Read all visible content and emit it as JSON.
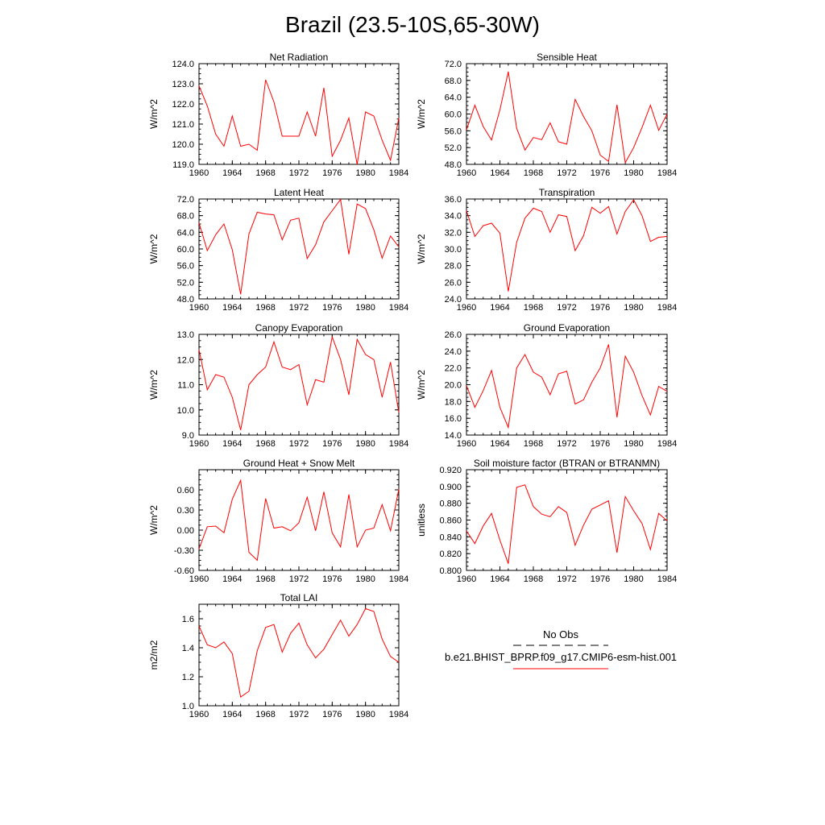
{
  "page": {
    "title": "Brazil (23.5-10S,65-30W)"
  },
  "legend": {
    "obs_label": "No Obs",
    "model_label": "b.e21.BHIST_BPRP.f09_g17.CMIP6-esm-hist.001",
    "model_color": "#ff0000",
    "obs_color": "#000000"
  },
  "chart_data": [
    {
      "type": "line",
      "title": "Net Radiation",
      "ylabel": "W/m^2",
      "xlim": [
        1960,
        1984
      ],
      "ylim": [
        119.0,
        124.0
      ],
      "xticks": [
        "1960",
        "1964",
        "1968",
        "1972",
        "1976",
        "1980",
        "1984"
      ],
      "yticks": [
        "119.0",
        "120.0",
        "121.0",
        "122.0",
        "123.0",
        "124.0"
      ],
      "x": [
        1960,
        1961,
        1962,
        1963,
        1964,
        1965,
        1966,
        1967,
        1968,
        1969,
        1970,
        1971,
        1972,
        1973,
        1974,
        1975,
        1976,
        1977,
        1978,
        1979,
        1980,
        1981,
        1982,
        1983,
        1984
      ],
      "series": [
        {
          "color": "#ff0000",
          "values": [
            122.9,
            121.9,
            120.5,
            119.9,
            121.4,
            119.9,
            120.0,
            119.7,
            123.2,
            122.1,
            120.4,
            120.4,
            120.4,
            121.6,
            120.4,
            122.8,
            119.4,
            120.2,
            121.3,
            119.0,
            121.6,
            121.4,
            120.2,
            119.2,
            121.3
          ]
        }
      ]
    },
    {
      "type": "line",
      "title": "Sensible Heat",
      "ylabel": "W/m^2",
      "xlim": [
        1960,
        1984
      ],
      "ylim": [
        48.0,
        72.0
      ],
      "xticks": [
        "1960",
        "1964",
        "1968",
        "1972",
        "1976",
        "1980",
        "1984"
      ],
      "yticks": [
        "48.0",
        "52.0",
        "56.0",
        "60.0",
        "64.0",
        "68.0",
        "72.0"
      ],
      "x": [
        1960,
        1961,
        1962,
        1963,
        1964,
        1965,
        1966,
        1967,
        1968,
        1969,
        1970,
        1971,
        1972,
        1973,
        1974,
        1975,
        1976,
        1977,
        1978,
        1979,
        1980,
        1981,
        1982,
        1983,
        1984
      ],
      "series": [
        {
          "color": "#ff0000",
          "values": [
            56.2,
            62.1,
            57.0,
            53.8,
            61.0,
            70.1,
            56.6,
            51.4,
            54.4,
            53.9,
            57.9,
            53.4,
            52.8,
            63.5,
            59.4,
            56.0,
            50.2,
            48.7,
            62.2,
            48.4,
            52.0,
            56.8,
            62.1,
            56.1,
            60.0
          ]
        }
      ]
    },
    {
      "type": "line",
      "title": "Latent Heat",
      "ylabel": "W/m^2",
      "xlim": [
        1960,
        1984
      ],
      "ylim": [
        48.0,
        72.0
      ],
      "xticks": [
        "1960",
        "1964",
        "1968",
        "1972",
        "1976",
        "1980",
        "1984"
      ],
      "yticks": [
        "48.0",
        "52.0",
        "56.0",
        "60.0",
        "64.0",
        "68.0",
        "72.0"
      ],
      "x": [
        1960,
        1961,
        1962,
        1963,
        1964,
        1965,
        1966,
        1967,
        1968,
        1969,
        1970,
        1971,
        1972,
        1973,
        1974,
        1975,
        1976,
        1977,
        1978,
        1979,
        1980,
        1981,
        1982,
        1983,
        1984
      ],
      "series": [
        {
          "color": "#ff0000",
          "values": [
            66.3,
            59.6,
            63.4,
            66.0,
            59.8,
            49.1,
            63.6,
            68.8,
            68.4,
            68.2,
            62.2,
            66.9,
            67.4,
            57.7,
            61.0,
            66.5,
            69.2,
            71.9,
            58.7,
            70.8,
            69.7,
            64.6,
            57.8,
            63.1,
            60.5
          ]
        }
      ]
    },
    {
      "type": "line",
      "title": "Transpiration",
      "ylabel": "W/m^2",
      "xlim": [
        1960,
        1984
      ],
      "ylim": [
        24.0,
        36.0
      ],
      "xticks": [
        "1960",
        "1964",
        "1968",
        "1972",
        "1976",
        "1980",
        "1984"
      ],
      "yticks": [
        "24.0",
        "26.0",
        "28.0",
        "30.0",
        "32.0",
        "34.0",
        "36.0"
      ],
      "x": [
        1960,
        1961,
        1962,
        1963,
        1964,
        1965,
        1966,
        1967,
        1968,
        1969,
        1970,
        1971,
        1972,
        1973,
        1974,
        1975,
        1976,
        1977,
        1978,
        1979,
        1980,
        1981,
        1982,
        1983,
        1984
      ],
      "series": [
        {
          "color": "#ff0000",
          "values": [
            34.6,
            31.5,
            32.8,
            33.1,
            31.9,
            24.9,
            30.8,
            33.7,
            34.9,
            34.5,
            32.0,
            34.1,
            33.9,
            29.8,
            31.6,
            35.0,
            34.3,
            35.1,
            31.8,
            34.5,
            35.9,
            34.0,
            30.9,
            31.4,
            31.5
          ]
        }
      ]
    },
    {
      "type": "line",
      "title": "Canopy Evaporation",
      "ylabel": "W/m^2",
      "xlim": [
        1960,
        1984
      ],
      "ylim": [
        9.0,
        13.0
      ],
      "xticks": [
        "1960",
        "1964",
        "1968",
        "1972",
        "1976",
        "1980",
        "1984"
      ],
      "yticks": [
        "9.0",
        "10.0",
        "11.0",
        "12.0",
        "13.0"
      ],
      "x": [
        1960,
        1961,
        1962,
        1963,
        1964,
        1965,
        1966,
        1967,
        1968,
        1969,
        1970,
        1971,
        1972,
        1973,
        1974,
        1975,
        1976,
        1977,
        1978,
        1979,
        1980,
        1981,
        1982,
        1983,
        1984
      ],
      "series": [
        {
          "color": "#ff0000",
          "values": [
            12.4,
            10.8,
            11.4,
            11.3,
            10.5,
            9.2,
            11.0,
            11.4,
            11.7,
            12.7,
            11.7,
            11.6,
            11.8,
            10.2,
            11.2,
            11.1,
            12.9,
            12.0,
            10.6,
            12.8,
            12.2,
            12.0,
            10.5,
            11.9,
            9.9
          ]
        }
      ]
    },
    {
      "type": "line",
      "title": "Ground Evaporation",
      "ylabel": "W/m^2",
      "xlim": [
        1960,
        1984
      ],
      "ylim": [
        14.0,
        26.0
      ],
      "xticks": [
        "1960",
        "1964",
        "1968",
        "1972",
        "1976",
        "1980",
        "1984"
      ],
      "yticks": [
        "14.0",
        "16.0",
        "18.0",
        "20.0",
        "22.0",
        "24.0",
        "26.0"
      ],
      "x": [
        1960,
        1961,
        1962,
        1963,
        1964,
        1965,
        1966,
        1967,
        1968,
        1969,
        1970,
        1971,
        1972,
        1973,
        1974,
        1975,
        1976,
        1977,
        1978,
        1979,
        1980,
        1981,
        1982,
        1983,
        1984
      ],
      "series": [
        {
          "color": "#ff0000",
          "values": [
            19.9,
            17.3,
            19.3,
            21.7,
            17.3,
            14.9,
            22.0,
            23.6,
            21.5,
            20.9,
            18.8,
            21.3,
            21.6,
            17.7,
            18.2,
            20.3,
            22.0,
            24.8,
            16.1,
            23.4,
            21.5,
            18.7,
            16.4,
            19.8,
            19.2
          ]
        }
      ]
    },
    {
      "type": "line",
      "title": "Ground Heat + Snow Melt",
      "ylabel": "W/m^2",
      "xlim": [
        1960,
        1984
      ],
      "ylim": [
        -0.6,
        0.9
      ],
      "xticks": [
        "1960",
        "1964",
        "1968",
        "1972",
        "1976",
        "1980",
        "1984"
      ],
      "yticks": [
        "-0.60",
        "-0.30",
        "0.00",
        "0.30",
        "0.60"
      ],
      "x": [
        1960,
        1961,
        1962,
        1963,
        1964,
        1965,
        1966,
        1967,
        1968,
        1969,
        1970,
        1971,
        1972,
        1973,
        1974,
        1975,
        1976,
        1977,
        1978,
        1979,
        1980,
        1981,
        1982,
        1983,
        1984
      ],
      "series": [
        {
          "color": "#ff0000",
          "values": [
            -0.28,
            0.05,
            0.06,
            -0.04,
            0.46,
            0.74,
            -0.33,
            -0.45,
            0.47,
            0.03,
            0.05,
            -0.01,
            0.11,
            0.49,
            -0.01,
            0.57,
            -0.04,
            -0.25,
            0.53,
            -0.25,
            0.0,
            0.03,
            0.38,
            -0.01,
            0.61
          ]
        }
      ]
    },
    {
      "type": "line",
      "title": "Soil moisture factor (BTRAN or BTRANMN)",
      "ylabel": "unitless",
      "xlim": [
        1960,
        1984
      ],
      "ylim": [
        0.8,
        0.92
      ],
      "xticks": [
        "1960",
        "1964",
        "1968",
        "1972",
        "1976",
        "1980",
        "1984"
      ],
      "yticks": [
        "0.800",
        "0.820",
        "0.840",
        "0.860",
        "0.880",
        "0.900",
        "0.920"
      ],
      "x": [
        1960,
        1961,
        1962,
        1963,
        1964,
        1965,
        1966,
        1967,
        1968,
        1969,
        1970,
        1971,
        1972,
        1973,
        1974,
        1975,
        1976,
        1977,
        1978,
        1979,
        1980,
        1981,
        1982,
        1983,
        1984
      ],
      "series": [
        {
          "color": "#ff0000",
          "values": [
            0.847,
            0.832,
            0.853,
            0.868,
            0.836,
            0.808,
            0.899,
            0.902,
            0.876,
            0.867,
            0.864,
            0.876,
            0.869,
            0.83,
            0.854,
            0.873,
            0.878,
            0.883,
            0.821,
            0.888,
            0.871,
            0.856,
            0.825,
            0.868,
            0.859
          ]
        }
      ]
    },
    {
      "type": "line",
      "title": "Total LAI",
      "ylabel": "m2/m2",
      "xlim": [
        1960,
        1984
      ],
      "ylim": [
        1.0,
        1.7
      ],
      "xticks": [
        "1960",
        "1964",
        "1968",
        "1972",
        "1976",
        "1980",
        "1984"
      ],
      "yticks": [
        "1.0",
        "1.2",
        "1.4",
        "1.6"
      ],
      "x": [
        1960,
        1961,
        1962,
        1963,
        1964,
        1965,
        1966,
        1967,
        1968,
        1969,
        1970,
        1971,
        1972,
        1973,
        1974,
        1975,
        1976,
        1977,
        1978,
        1979,
        1980,
        1981,
        1982,
        1983,
        1984
      ],
      "series": [
        {
          "color": "#ff0000",
          "values": [
            1.55,
            1.42,
            1.4,
            1.44,
            1.36,
            1.06,
            1.1,
            1.38,
            1.54,
            1.56,
            1.37,
            1.5,
            1.57,
            1.42,
            1.33,
            1.39,
            1.49,
            1.59,
            1.48,
            1.56,
            1.67,
            1.65,
            1.46,
            1.34,
            1.3
          ]
        }
      ]
    }
  ]
}
